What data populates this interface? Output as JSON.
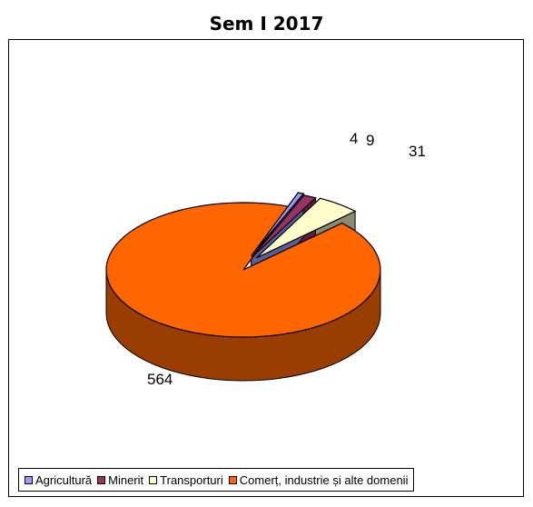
{
  "chart_data": {
    "type": "pie",
    "title": "Sem I 2017",
    "categories": [
      "Agricultură",
      "Minerit",
      "Transporturi",
      "Comerț, industrie și alte domenii"
    ],
    "values": [
      4,
      9,
      31,
      564
    ],
    "data_labels": [
      "4",
      "9",
      "31",
      "564"
    ],
    "colors": [
      "#9999ff",
      "#993366",
      "#ffffcc",
      "#ff6600"
    ],
    "side_colors": [
      "#5c5c99",
      "#5c1f3d",
      "#8a8a6c",
      "#993d00"
    ],
    "exploded": [
      true,
      true,
      true,
      false
    ],
    "style": "3d",
    "legend_position": "bottom"
  }
}
